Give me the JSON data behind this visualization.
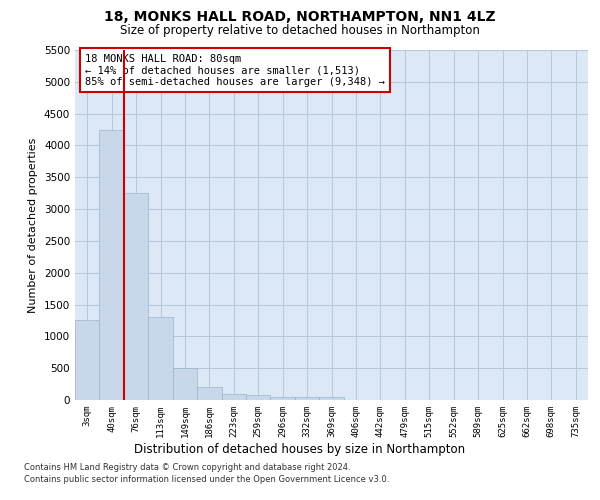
{
  "title": "18, MONKS HALL ROAD, NORTHAMPTON, NN1 4LZ",
  "subtitle": "Size of property relative to detached houses in Northampton",
  "xlabel": "Distribution of detached houses by size in Northampton",
  "ylabel": "Number of detached properties",
  "footnote1": "Contains HM Land Registry data © Crown copyright and database right 2024.",
  "footnote2": "Contains public sector information licensed under the Open Government Licence v3.0.",
  "bar_color": "#c8d8ea",
  "bar_edge_color": "#99b4cc",
  "grid_color": "#b4c8dc",
  "bg_color": "#dce8f5",
  "vline_color": "#cc0000",
  "ann_edge_color": "#cc0000",
  "categories": [
    "3sqm",
    "40sqm",
    "76sqm",
    "113sqm",
    "149sqm",
    "186sqm",
    "223sqm",
    "259sqm",
    "296sqm",
    "332sqm",
    "369sqm",
    "406sqm",
    "442sqm",
    "479sqm",
    "515sqm",
    "552sqm",
    "589sqm",
    "625sqm",
    "662sqm",
    "698sqm",
    "735sqm"
  ],
  "values": [
    1250,
    4250,
    3250,
    1300,
    500,
    200,
    100,
    75,
    55,
    50,
    50,
    0,
    0,
    0,
    0,
    0,
    0,
    0,
    0,
    0,
    0
  ],
  "ylim": [
    0,
    5500
  ],
  "yticks": [
    0,
    500,
    1000,
    1500,
    2000,
    2500,
    3000,
    3500,
    4000,
    4500,
    5000,
    5500
  ],
  "vline_x": 1.5,
  "ann_line1": "18 MONKS HALL ROAD: 80sqm",
  "ann_line2": "← 14% of detached houses are smaller (1,513)",
  "ann_line3": "85% of semi-detached houses are larger (9,348) →"
}
